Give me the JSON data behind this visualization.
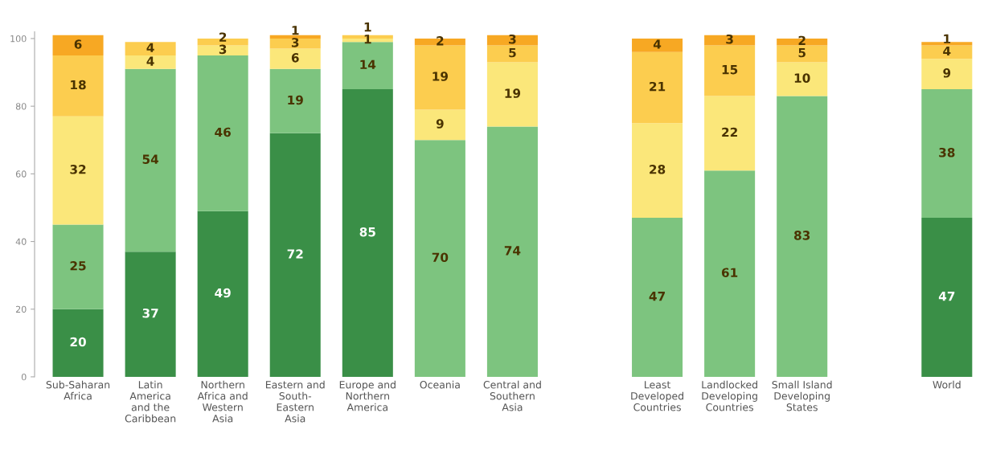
{
  "chart_data": {
    "type": "bar",
    "stacked": true,
    "data_labels": true,
    "categories": [
      "Sub-Saharan\nAfrica",
      "Latin\nAmerica\nand the\nCaribbean",
      "Northern\nAfrica and\nWestern\nAsia",
      "Eastern and\nSouth-\nEastern\nAsia",
      "Europe and\nNorthern\nAmerica",
      "Oceania",
      "Central and\nSouthern\nAsia",
      null,
      "Least\nDeveloped\nCountries",
      "Landlocked\nDeveloping\nCountries",
      "Small Island\nDeveloping\nStates",
      null,
      "World"
    ],
    "series": [
      {
        "color": "#3a8f47",
        "values": [
          20,
          37,
          49,
          72,
          85,
          null,
          null,
          null,
          null,
          null,
          null,
          null,
          47
        ]
      },
      {
        "color": "#7dc47f",
        "values": [
          25,
          54,
          46,
          19,
          14,
          70,
          74,
          null,
          47,
          61,
          83,
          null,
          38
        ]
      },
      {
        "color": "#fbe77a",
        "values": [
          32,
          4,
          3,
          6,
          1,
          9,
          19,
          null,
          28,
          22,
          10,
          null,
          9
        ]
      },
      {
        "color": "#fccd4f",
        "values": [
          18,
          4,
          2,
          3,
          1,
          19,
          5,
          null,
          21,
          15,
          5,
          null,
          4
        ]
      },
      {
        "color": "#f7a823",
        "values": [
          6,
          null,
          null,
          1,
          null,
          2,
          3,
          null,
          4,
          3,
          2,
          null,
          1
        ]
      }
    ],
    "ylim": [
      0,
      102
    ],
    "yticks": [
      0,
      20,
      40,
      60,
      80,
      100
    ]
  }
}
